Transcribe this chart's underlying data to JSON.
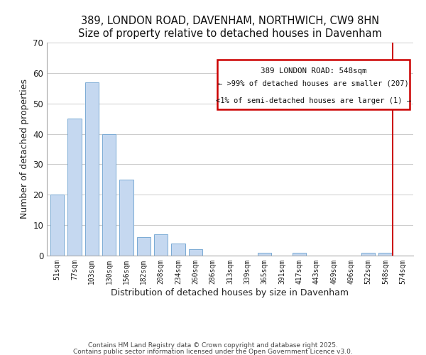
{
  "title": "389, LONDON ROAD, DAVENHAM, NORTHWICH, CW9 8HN",
  "subtitle": "Size of property relative to detached houses in Davenham",
  "xlabel": "Distribution of detached houses by size in Davenham",
  "ylabel": "Number of detached properties",
  "categories": [
    "51sqm",
    "77sqm",
    "103sqm",
    "130sqm",
    "156sqm",
    "182sqm",
    "208sqm",
    "234sqm",
    "260sqm",
    "286sqm",
    "313sqm",
    "339sqm",
    "365sqm",
    "391sqm",
    "417sqm",
    "443sqm",
    "469sqm",
    "496sqm",
    "522sqm",
    "548sqm",
    "574sqm"
  ],
  "values": [
    20,
    45,
    57,
    40,
    25,
    6,
    7,
    4,
    2,
    0,
    0,
    0,
    1,
    0,
    1,
    0,
    0,
    0,
    1,
    1,
    0
  ],
  "bar_color": "#c5d8f0",
  "bar_edge_color": "#7aaad4",
  "highlight_index": 19,
  "highlight_color": "#cc0000",
  "ylim": [
    0,
    70
  ],
  "yticks": [
    0,
    10,
    20,
    30,
    40,
    50,
    60,
    70
  ],
  "legend_title": "389 LONDON ROAD: 548sqm",
  "legend_line1": "← >99% of detached houses are smaller (207)",
  "legend_line2": "<1% of semi-detached houses are larger (1) →",
  "footnote1": "Contains HM Land Registry data © Crown copyright and database right 2025.",
  "footnote2": "Contains public sector information licensed under the Open Government Licence v3.0.",
  "background_color": "#ffffff"
}
